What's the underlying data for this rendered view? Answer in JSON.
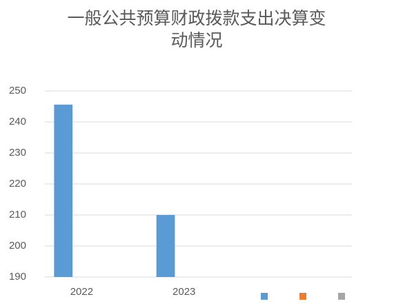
{
  "chart_data": {
    "type": "bar",
    "title": "一般公共预算财政拨款支出决算变动情况",
    "categories": [
      "2022",
      "2023",
      null
    ],
    "series": [
      {
        "color": "#5b9bd5",
        "values": [
          245.6,
          210,
          null
        ]
      },
      {
        "color": "#ed7d31",
        "values": [
          null,
          null,
          null
        ]
      },
      {
        "color": "#a5a5a5",
        "values": [
          null,
          null,
          null
        ]
      }
    ],
    "ylim": [
      190,
      250
    ],
    "yticks": [
      190,
      200,
      210,
      220,
      230,
      240,
      250
    ],
    "grid": true
  }
}
